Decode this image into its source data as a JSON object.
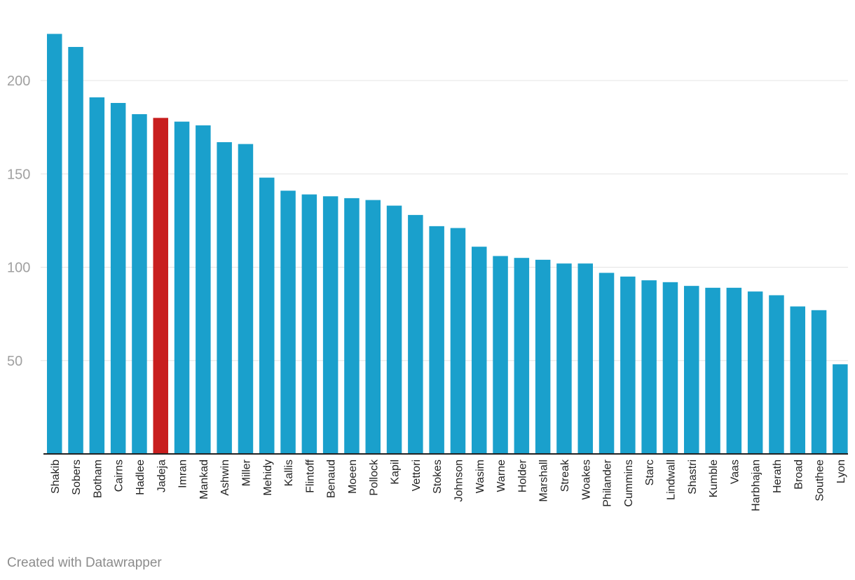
{
  "credit": "Created with Datawrapper",
  "colors": {
    "bar": "#1aa0cc",
    "highlight": "#c81e1e",
    "grid": "#e4e4e4",
    "axis": "#222222"
  },
  "chart_data": {
    "type": "bar",
    "title": "",
    "xlabel": "",
    "ylabel": "",
    "ylim": [
      0,
      225
    ],
    "yticks": [
      50,
      100,
      150,
      200
    ],
    "highlight": "Jadeja",
    "categories": [
      "Shakib",
      "Sobers",
      "Botham",
      "Cairns",
      "Hadlee",
      "Jadeja",
      "Imran",
      "Mankad",
      "Ashwin",
      "Miller",
      "Mehidy",
      "Kallis",
      "Flintoff",
      "Benaud",
      "Moeen",
      "Pollock",
      "Kapil",
      "Vettori",
      "Stokes",
      "Johnson",
      "Wasim",
      "Warne",
      "Holder",
      "Marshall",
      "Streak",
      "Woakes",
      "Philander",
      "Cummins",
      "Starc",
      "Lindwall",
      "Shastri",
      "Kumble",
      "Vaas",
      "Harbhajan",
      "Herath",
      "Broad",
      "Southee",
      "Lyon"
    ],
    "values": [
      225,
      218,
      191,
      188,
      182,
      180,
      178,
      176,
      167,
      166,
      148,
      141,
      139,
      138,
      137,
      136,
      133,
      128,
      122,
      121,
      111,
      106,
      105,
      104,
      102,
      102,
      97,
      95,
      93,
      92,
      90,
      89,
      89,
      87,
      85,
      79,
      77,
      48
    ]
  }
}
